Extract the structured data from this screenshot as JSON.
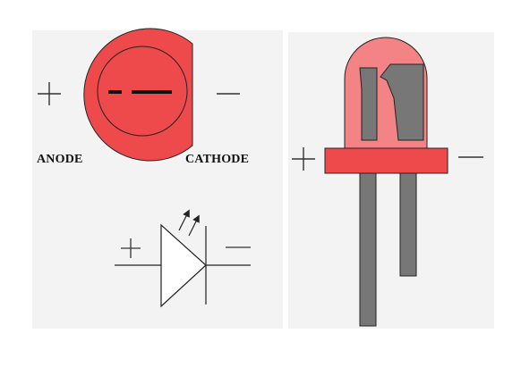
{
  "labels": {
    "anode": "ANODE",
    "cathode": "CATHODE"
  },
  "colors": {
    "background": "#ffffff",
    "panel": "#f3f3f3",
    "led_body": "#ee4a4c",
    "led_dome": "#f38384",
    "lead": "#777777",
    "outline": "#222222"
  },
  "symbols": {
    "plus": "plus-icon",
    "minus": "minus-icon",
    "light": "light-emission-arrows-icon"
  }
}
